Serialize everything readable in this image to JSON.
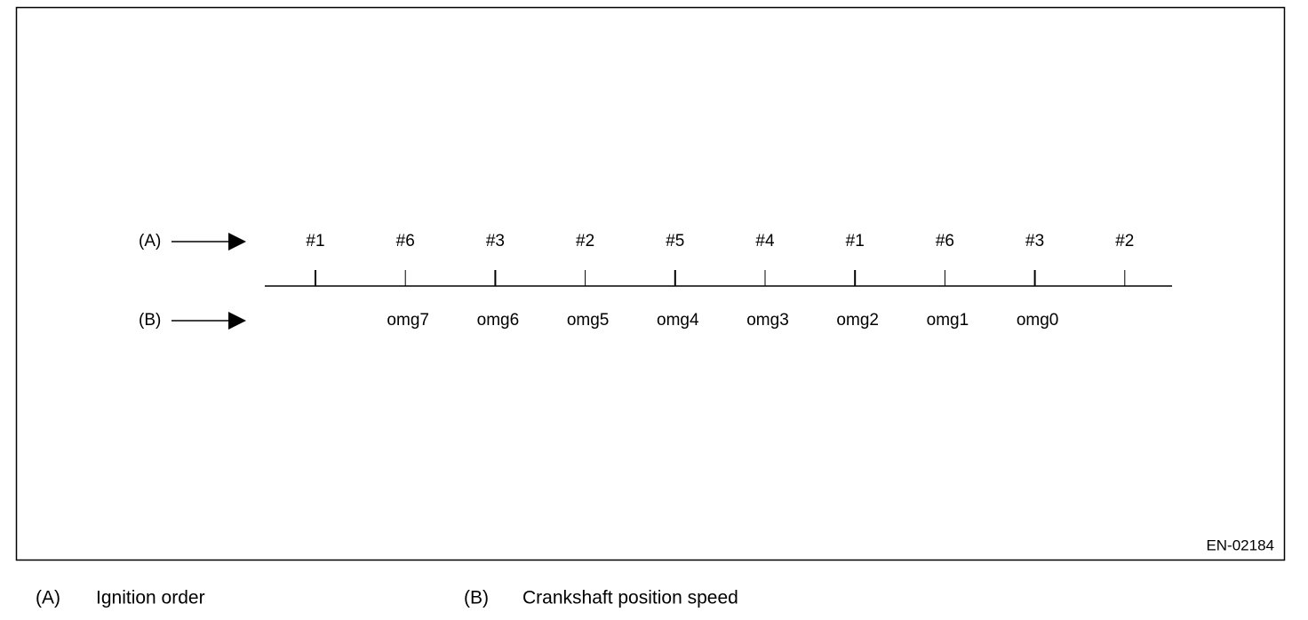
{
  "row_a": {
    "label": "(A)",
    "items": [
      "#1",
      "#6",
      "#3",
      "#2",
      "#5",
      "#4",
      "#1",
      "#6",
      "#3",
      "#2"
    ]
  },
  "row_b": {
    "label": "(B)",
    "items": [
      "omg7",
      "omg6",
      "omg5",
      "omg4",
      "omg3",
      "omg2",
      "omg1",
      "omg0"
    ]
  },
  "figure_code": "EN-02184",
  "legend": [
    {
      "key": "(A)",
      "text": "Ignition order"
    },
    {
      "key": "(B)",
      "text": "Crankshaft position speed"
    }
  ]
}
